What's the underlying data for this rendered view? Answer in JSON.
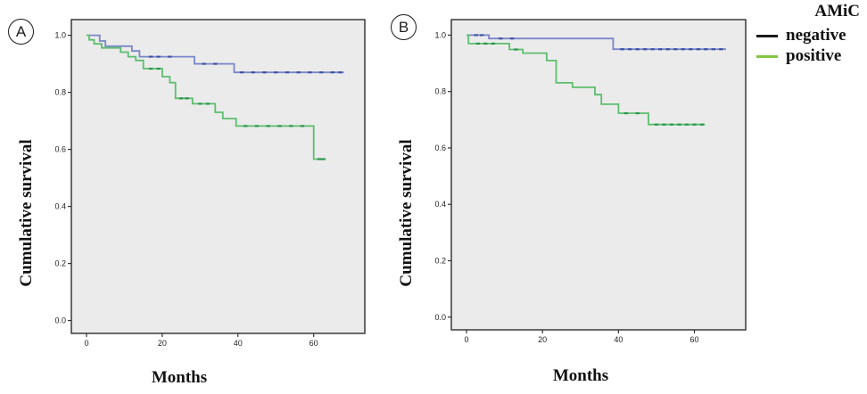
{
  "figure": {
    "background": "#ffffff",
    "plot_background": "#ebebeb",
    "border_color": "#3a3a3a"
  },
  "panels": [
    {
      "letter": "A",
      "xlabel": "Months",
      "ylabel": "Cumulative survival"
    },
    {
      "letter": "B",
      "xlabel": "Months",
      "ylabel": "Cumulative survival"
    }
  ],
  "legend": {
    "title": "AMiC",
    "items": [
      {
        "label": "negative",
        "color": "#1a1a1a"
      },
      {
        "label": "positive",
        "color": "#82c543"
      }
    ]
  },
  "chart_data": [
    {
      "type": "line",
      "subtype": "kaplan-meier-step",
      "panel": "A",
      "title": "",
      "xlabel": "Months",
      "ylabel": "Cumulative survival",
      "xlim": [
        -4,
        73.5
      ],
      "ylim": [
        -0.045,
        1.055
      ],
      "xticks": [
        0,
        20,
        40,
        60
      ],
      "yticks": [
        0.0,
        0.2,
        0.4,
        0.6,
        0.8,
        1.0
      ],
      "grid": false,
      "plot_background": "#ebebeb",
      "legend_position": "outside-top-right",
      "series": [
        {
          "name": "negative",
          "color": "#7a86c8",
          "censor_color": "#3f51a3",
          "points": [
            [
              0,
              1.0
            ],
            [
              3.5,
              0.98
            ],
            [
              5,
              0.962
            ],
            [
              12,
              0.945
            ],
            [
              14,
              0.925
            ],
            [
              28.5,
              0.9
            ],
            [
              39,
              0.87
            ]
          ],
          "end_month": 68,
          "censor_months": [
            17,
            19,
            22,
            31,
            34,
            41,
            44,
            47,
            50,
            53,
            56,
            59,
            62,
            65,
            67
          ]
        },
        {
          "name": "positive",
          "color": "#5cbe6e",
          "censor_color": "#27964c",
          "points": [
            [
              0,
              1.0
            ],
            [
              0.7,
              0.984
            ],
            [
              2,
              0.97
            ],
            [
              4,
              0.956
            ],
            [
              9,
              0.941
            ],
            [
              11,
              0.925
            ],
            [
              13,
              0.912
            ],
            [
              15,
              0.883
            ],
            [
              20,
              0.855
            ],
            [
              22,
              0.834
            ],
            [
              23.5,
              0.779
            ],
            [
              28,
              0.76
            ],
            [
              34,
              0.73
            ],
            [
              36,
              0.708
            ],
            [
              39.5,
              0.682
            ],
            [
              60,
              0.566
            ]
          ],
          "end_month": 63.2,
          "censor_months": [
            17,
            19,
            25,
            26.5,
            30,
            32,
            42,
            45,
            48,
            51,
            54,
            57,
            61.5,
            62.5
          ]
        }
      ]
    },
    {
      "type": "line",
      "subtype": "kaplan-meier-step",
      "panel": "B",
      "title": "",
      "xlabel": "Months",
      "ylabel": "Cumulative survival",
      "xlim": [
        -4,
        73.5
      ],
      "ylim": [
        -0.045,
        1.055
      ],
      "xticks": [
        0,
        20,
        40,
        60
      ],
      "yticks": [
        0.0,
        0.2,
        0.4,
        0.6,
        0.8,
        1.0
      ],
      "grid": false,
      "plot_background": "#ebebeb",
      "legend_position": "outside-top-right",
      "series": [
        {
          "name": "negative",
          "color": "#7a86c8",
          "censor_color": "#3f51a3",
          "points": [
            [
              0,
              1.0
            ],
            [
              5.9,
              0.988
            ],
            [
              38.6,
              0.95
            ]
          ],
          "end_month": 68.3,
          "censor_months": [
            2.5,
            4,
            9,
            12,
            41,
            43,
            45,
            47,
            49,
            51,
            53,
            55,
            57,
            59,
            61,
            63,
            65,
            67
          ]
        },
        {
          "name": "positive",
          "color": "#5cbe6e",
          "censor_color": "#27964c",
          "points": [
            [
              0,
              1.0
            ],
            [
              0.5,
              0.97
            ],
            [
              11.3,
              0.949
            ],
            [
              14.8,
              0.936
            ],
            [
              21.1,
              0.91
            ],
            [
              23.6,
              0.831
            ],
            [
              27.9,
              0.815
            ],
            [
              33.8,
              0.789
            ],
            [
              35.5,
              0.755
            ],
            [
              40,
              0.723
            ],
            [
              47.9,
              0.683
            ]
          ],
          "end_month": 62.8,
          "censor_months": [
            3,
            5,
            7,
            13,
            42,
            45,
            50,
            52,
            54,
            56,
            58,
            60,
            62
          ]
        }
      ]
    }
  ]
}
